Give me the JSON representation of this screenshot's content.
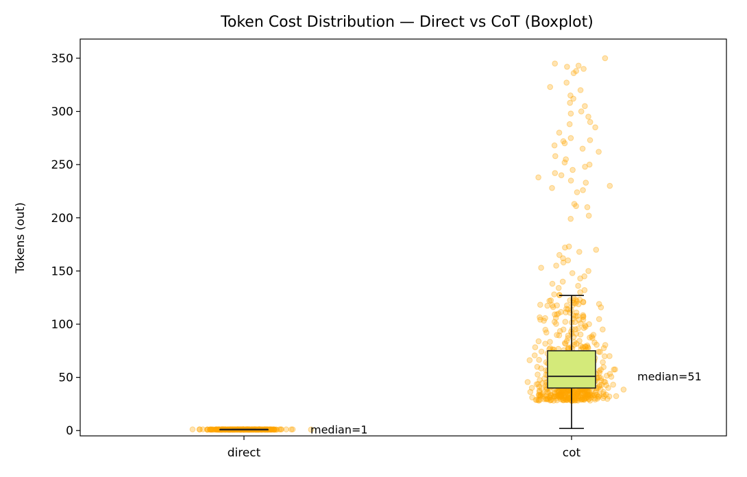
{
  "chart_data": {
    "type": "boxplot",
    "title": "Token Cost Distribution — Direct vs CoT (Boxplot)",
    "xlabel": "",
    "ylabel": "Tokens (out)",
    "categories": [
      "direct",
      "cot"
    ],
    "ylim": [
      -5,
      368
    ],
    "yticks": [
      0,
      50,
      100,
      150,
      200,
      250,
      300,
      350
    ],
    "grid": false,
    "box_color": "#d4ea7a",
    "point_color": "#ffa500",
    "boxes": [
      {
        "category": "direct",
        "whisker_low": 1,
        "q1": 1,
        "median": 1,
        "q3": 1,
        "whisker_high": 1,
        "annotation": "median=1"
      },
      {
        "category": "cot",
        "whisker_low": 2,
        "q1": 40,
        "median": 51,
        "q3": 75,
        "whisker_high": 127,
        "annotation": "median=51"
      }
    ],
    "outliers_cot": [
      350,
      345,
      343,
      342,
      340,
      338,
      336,
      327,
      323,
      320,
      315,
      312,
      308,
      305,
      300,
      298,
      295,
      290,
      288,
      285,
      280,
      275,
      273,
      272,
      270,
      268,
      265,
      262,
      258,
      255,
      252,
      250,
      248,
      245,
      242,
      240,
      238,
      235,
      233,
      230,
      228,
      226,
      224,
      213,
      211,
      210,
      202,
      199,
      173,
      172,
      170,
      168,
      165,
      162,
      160,
      158,
      155,
      153,
      150,
      148,
      145,
      143,
      140,
      138,
      136,
      134,
      132,
      130,
      128
    ]
  }
}
